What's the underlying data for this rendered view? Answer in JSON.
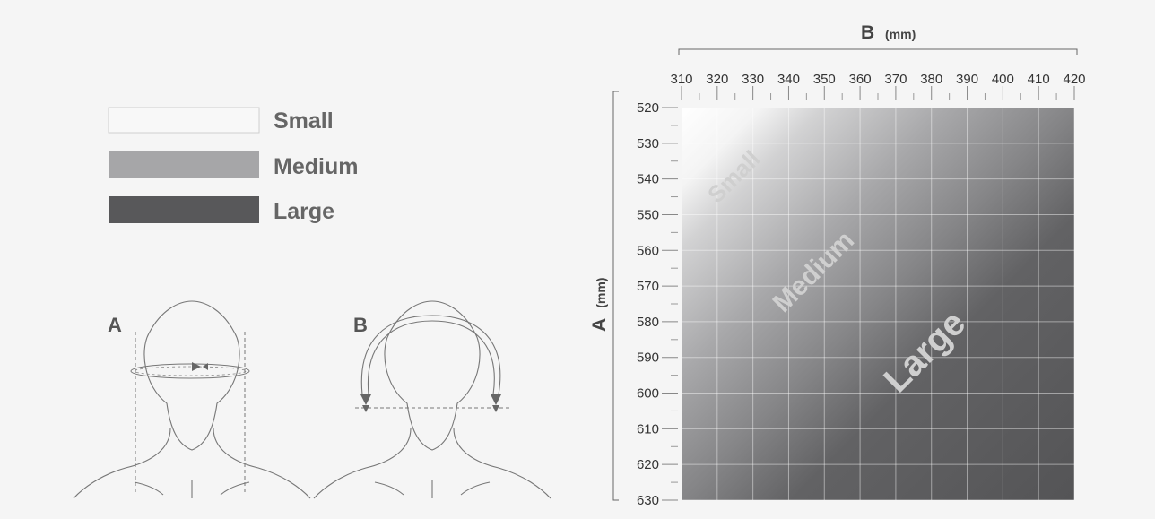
{
  "legend": [
    {
      "label": "Small",
      "color": "#f8f8f8"
    },
    {
      "label": "Medium",
      "color": "#a6a6a8"
    },
    {
      "label": "Large",
      "color": "#58585a"
    }
  ],
  "figures": {
    "a_label": "A",
    "b_label": "B"
  },
  "chart_data": {
    "type": "heatmap",
    "title": "",
    "x_axis": {
      "label": "B",
      "unit": "(mm)",
      "position": "top",
      "range": [
        310,
        420
      ],
      "ticks": [
        310,
        320,
        330,
        340,
        350,
        360,
        370,
        380,
        390,
        400,
        410,
        420
      ]
    },
    "y_axis": {
      "label": "A",
      "unit": "(mm)",
      "position": "left",
      "range": [
        520,
        630
      ],
      "ticks": [
        520,
        530,
        540,
        550,
        560,
        570,
        580,
        590,
        600,
        610,
        620,
        630
      ]
    },
    "grid": true,
    "regions": [
      {
        "label": "Small",
        "color": "#f8f8f8"
      },
      {
        "label": "Medium",
        "color": "#a6a6a8"
      },
      {
        "label": "Large",
        "color": "#58585a"
      }
    ]
  }
}
